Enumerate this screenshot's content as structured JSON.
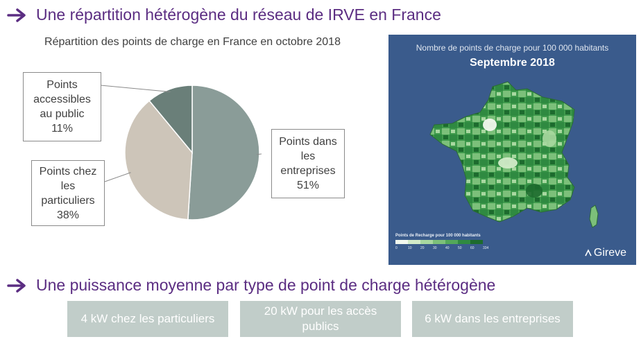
{
  "headings": {
    "distribution": "Une répartition hétérogène du réseau de IRVE en France",
    "power": "Une puissance moyenne par type de point de charge hétérogène"
  },
  "chart_data": {
    "type": "pie",
    "title": "Répartition des points de charge en France en octobre 2018",
    "slices": [
      {
        "label": "Points dans les entreprises",
        "value": 51,
        "color": "#8a9c98"
      },
      {
        "label": "Points chez les particuliers",
        "value": 38,
        "color": "#cdc5b9"
      },
      {
        "label": "Points accessibles au public",
        "value": 11,
        "color": "#6a7f79"
      }
    ]
  },
  "callouts": {
    "public": {
      "lines": [
        "Points",
        "accessibles",
        "au public",
        "11%"
      ]
    },
    "enterprises": {
      "lines": [
        "Points dans",
        "les",
        "entreprises",
        "51%"
      ]
    },
    "private": {
      "lines": [
        "Points chez",
        "les",
        "particuliers",
        "38%"
      ]
    }
  },
  "map": {
    "title": "Nombre de points de charge pour 100 000 habitants",
    "subtitle": "Septembre 2018",
    "legend_title": "Points de Recharge pour 100 000 habitants",
    "legend_ticks": [
      "0",
      "10",
      "20",
      "30",
      "40",
      "50",
      "60",
      "334"
    ],
    "legend_colors": [
      "#f2f8ee",
      "#d2ebc8",
      "#a8d8a0",
      "#7cc07a",
      "#53a85a",
      "#2f8a41",
      "#1d6b2e"
    ],
    "brand": "Gireve",
    "background": "#3a5b8c"
  },
  "power_boxes": [
    {
      "text": "4 kW chez les particuliers"
    },
    {
      "text": "20 kW pour les accès publics"
    },
    {
      "text": "6 kW dans les entreprises"
    }
  ],
  "colors": {
    "accent": "#5b2d82",
    "box": "#c1cdc9"
  }
}
